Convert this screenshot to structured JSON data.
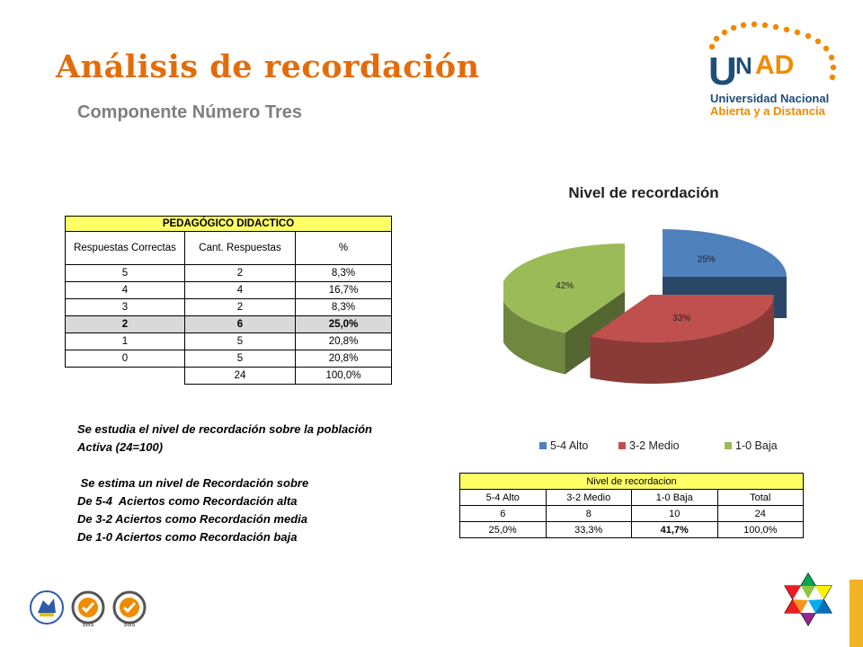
{
  "header": {
    "title": "Análisis de recordación",
    "subtitle": "Componente Número Tres"
  },
  "logo": {
    "name": "UNAD",
    "line1": "Universidad Nacional",
    "line2": "Abierta y a Distancia",
    "colors": {
      "blue": "#1f4e79",
      "orange": "#f08a00"
    }
  },
  "table1": {
    "title": "PEDAGÓGICO DIDACTICO",
    "headers": [
      "Respuestas Correctas",
      "Cant. Respuestas",
      "%"
    ],
    "rows": [
      [
        "5",
        "2",
        "8,3%"
      ],
      [
        "4",
        "4",
        "16,7%"
      ],
      [
        "3",
        "2",
        "8,3%"
      ],
      [
        "2",
        "6",
        "25,0%"
      ],
      [
        "1",
        "5",
        "20,8%"
      ],
      [
        "0",
        "5",
        "20,8%"
      ]
    ],
    "total": [
      "24",
      "100,0%"
    ]
  },
  "notes": {
    "line1": "Se estudia el nivel de recordación sobre la población",
    "line2": "Activa (24=100)",
    "line3": " Se estima un nivel de Recordación sobre",
    "line4": "De 5-4  Aciertos como Recordación alta",
    "line5": "De 3-2 Aciertos como Recordación media",
    "line6": "De 1-0 Aciertos como Recordación baja"
  },
  "chart_data": {
    "type": "pie",
    "title": "Nivel de recordación",
    "categories": [
      "5-4 Alto",
      "3-2 Medio",
      "1-0 Baja"
    ],
    "values": [
      25,
      33,
      42
    ],
    "labels": [
      "25%",
      "33%",
      "42%"
    ],
    "colors": [
      "#4f81bd",
      "#c0504d",
      "#9bbb59"
    ],
    "legend": "bottom",
    "style": "3d-exploded"
  },
  "table2": {
    "title": "Nivel de recordacion",
    "headers": [
      "5-4 Alto",
      "3-2 Medio",
      "1-0 Baja",
      "Total"
    ],
    "counts": [
      "6",
      "8",
      "10",
      "24"
    ],
    "percents": [
      "25,0%",
      "33,3%",
      "41,7%",
      "100,0%"
    ]
  },
  "footer": {
    "cert_labels": [
      "SGS",
      "SGS"
    ]
  }
}
